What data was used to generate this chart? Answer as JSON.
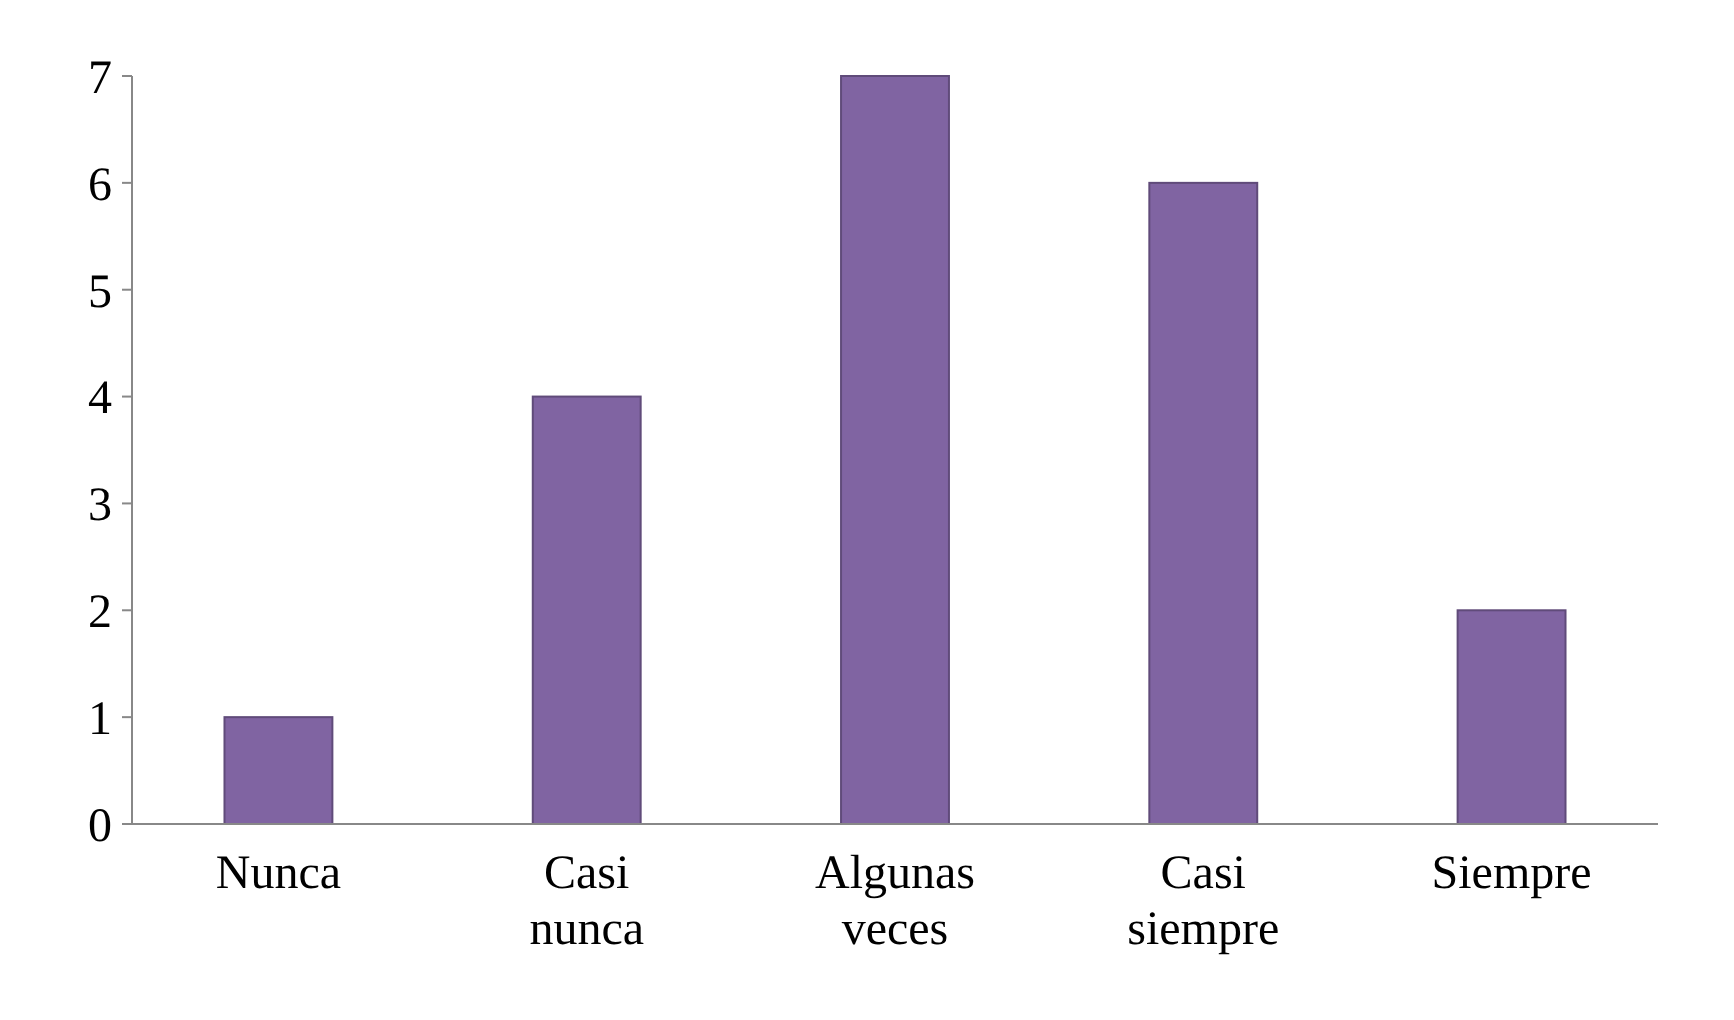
{
  "chart_data": {
    "type": "bar",
    "categories": [
      "Nunca",
      "Casi nunca",
      "Algunas veces",
      "Casi siempre",
      "Siempre"
    ],
    "values": [
      1,
      4,
      7,
      6,
      2
    ],
    "color": "#8064a2",
    "ylim": [
      0,
      7
    ],
    "yticks": [
      0,
      1,
      2,
      3,
      4,
      5,
      6,
      7
    ],
    "grid": false
  }
}
